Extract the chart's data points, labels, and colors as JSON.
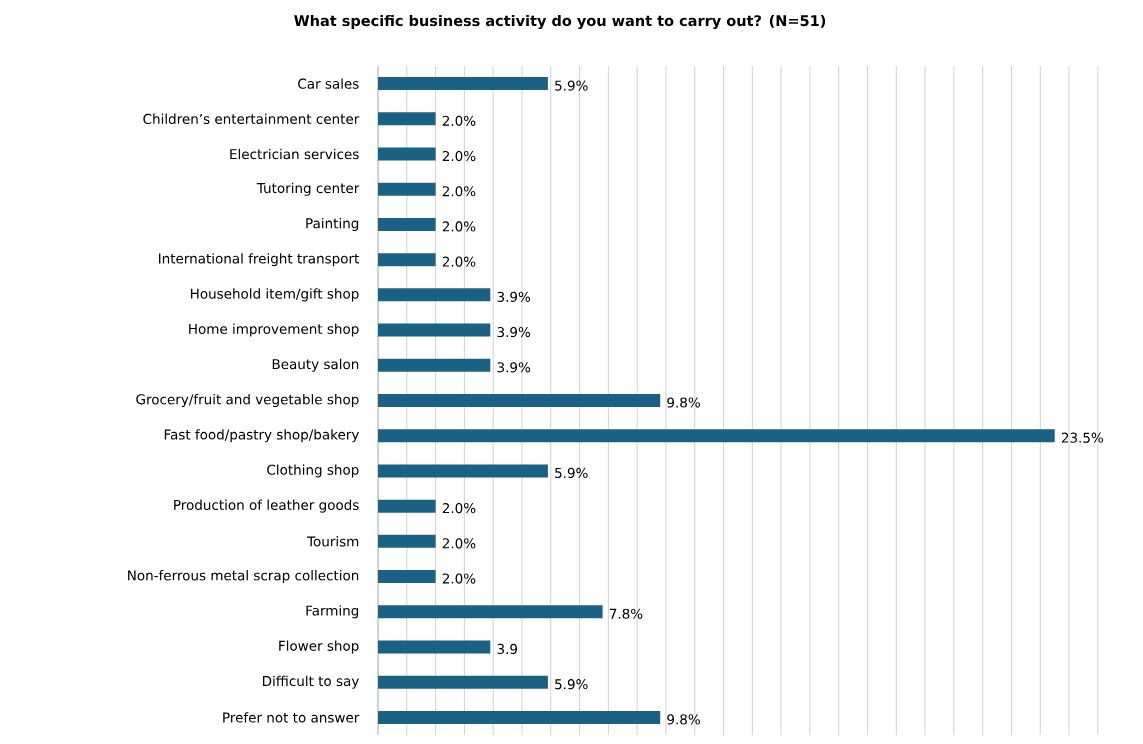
{
  "chart_data": {
    "type": "bar",
    "orientation": "horizontal",
    "title": "What specific business activity do you want to carry out? (N=51)",
    "categories": [
      "Car sales",
      "Children’s entertainment center",
      "Electrician services",
      "Tutoring center",
      "Painting",
      "International freight transport",
      "Household item/gift shop",
      "Home improvement shop",
      "Beauty salon",
      "Grocery/fruit and vegetable shop",
      "Fast food/pastry shop/bakery",
      "Clothing shop",
      "Production of leather goods",
      "Tourism",
      "Non-ferrous metal scrap collection",
      "Farming",
      "Flower shop",
      "Difficult to say",
      "Prefer not to answer"
    ],
    "values": [
      5.9,
      2.0,
      2.0,
      2.0,
      2.0,
      2.0,
      3.9,
      3.9,
      3.9,
      9.8,
      23.5,
      5.9,
      2.0,
      2.0,
      2.0,
      7.8,
      3.9,
      5.9,
      9.8
    ],
    "value_labels": [
      "5.9%",
      "2.0%",
      "2.0%",
      "2.0%",
      "2.0%",
      "2.0%",
      "3.9%",
      "3.9%",
      "3.9%",
      "9.8%",
      "23.5%",
      "5.9%",
      "2.0%",
      "2.0%",
      "2.0%",
      "7.8%",
      "3.9",
      "5.9%",
      "9.8%"
    ],
    "color": "#1b6085",
    "grid": "x",
    "tick_labels": "y"
  }
}
